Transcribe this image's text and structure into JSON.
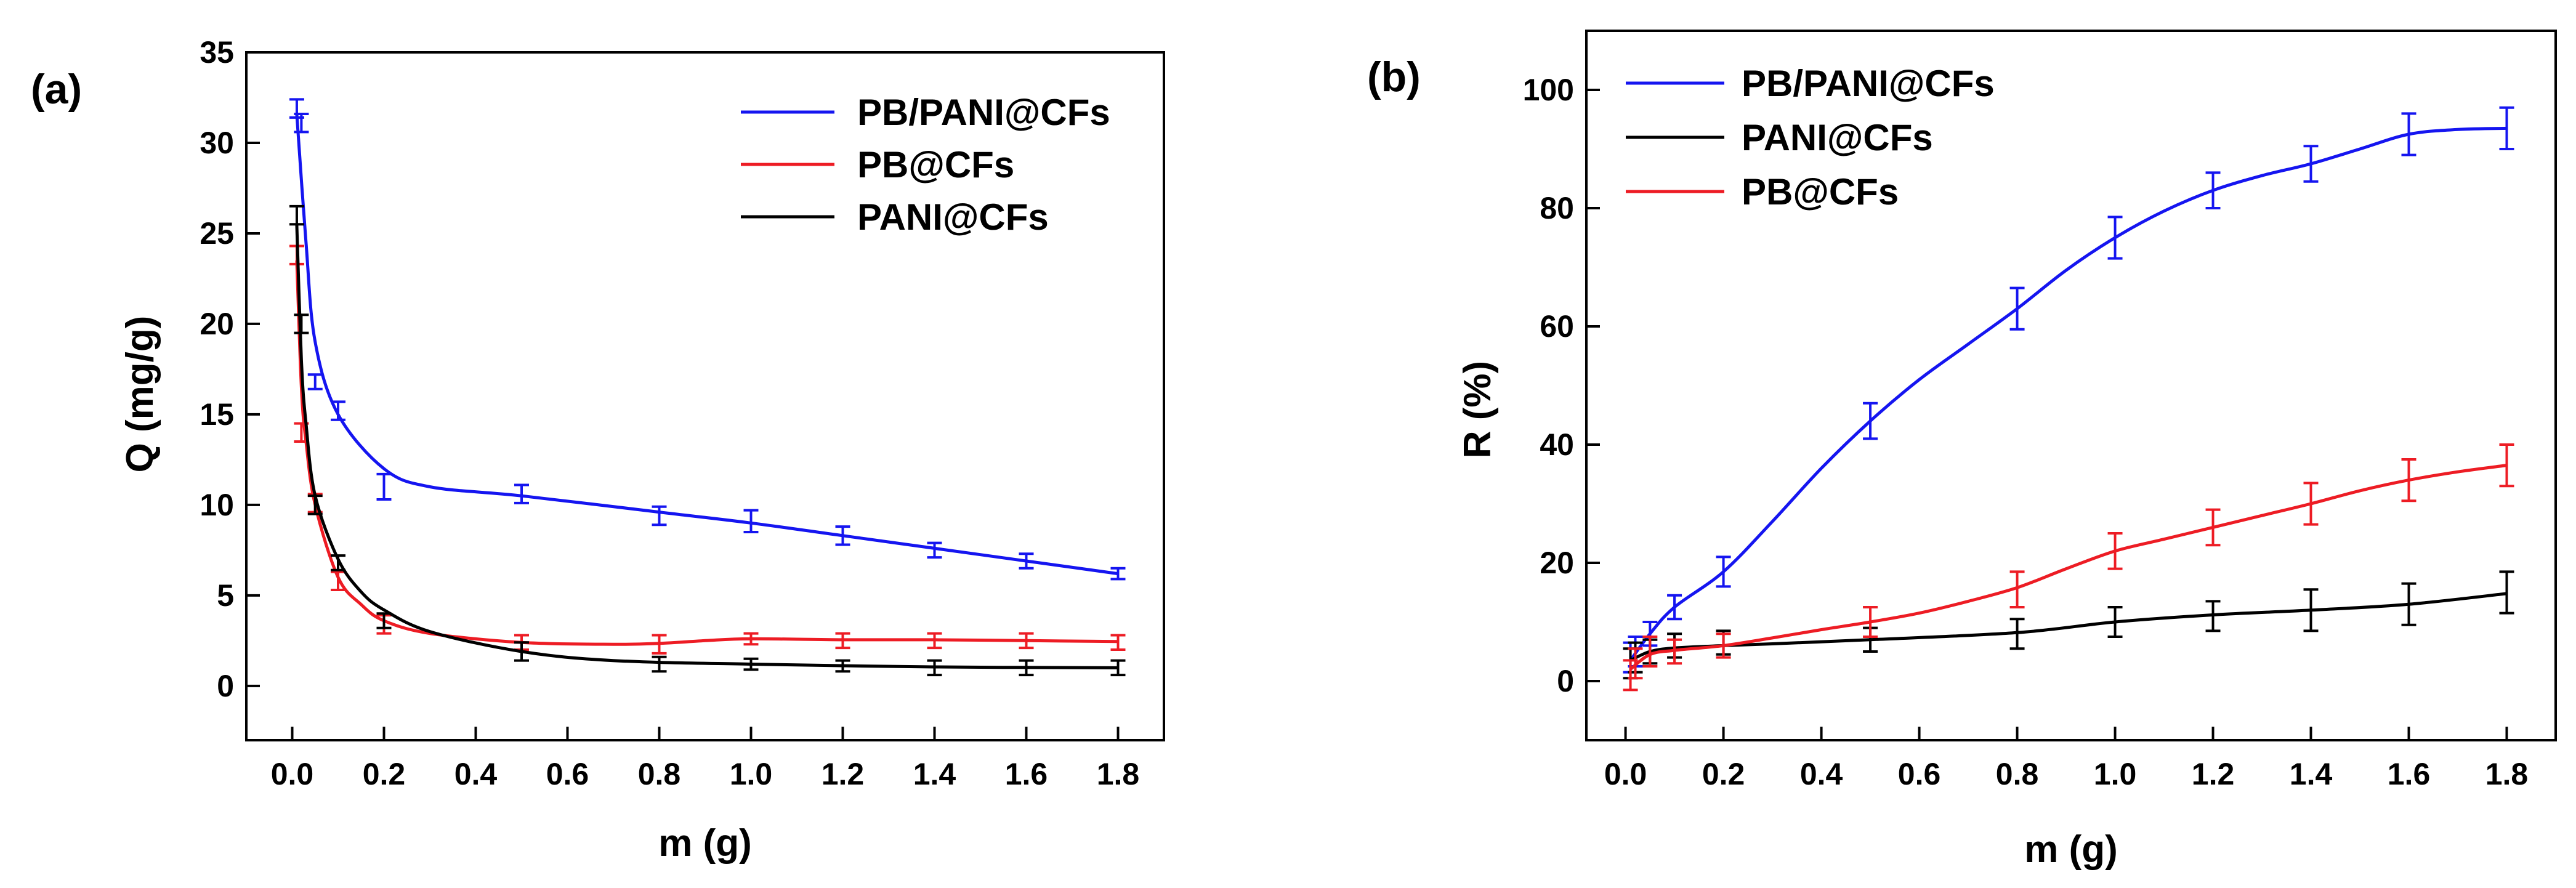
{
  "chart_data": [
    {
      "type": "line",
      "panel_label": "(a)",
      "xlabel": "m (g)",
      "ylabel": "Q (mg/g)",
      "xlim": [
        -0.1,
        1.9
      ],
      "ylim": [
        -3,
        35
      ],
      "xticks": [
        0.0,
        0.2,
        0.4,
        0.6,
        0.8,
        1.0,
        1.2,
        1.4,
        1.6,
        1.8
      ],
      "xtick_labels": [
        "0.0",
        "0.2",
        "0.4",
        "0.6",
        "0.8",
        "1.0",
        "1.2",
        "1.4",
        "1.6",
        "1.8"
      ],
      "yticks": [
        0,
        5,
        10,
        15,
        20,
        25,
        30,
        35
      ],
      "ytick_labels": [
        "0",
        "5",
        "10",
        "15",
        "20",
        "25",
        "30",
        "35"
      ],
      "legend_position": "top-right",
      "series": [
        {
          "name": "PB/PANI@CFs",
          "color": "#1515f0",
          "x": [
            0.01,
            0.02,
            0.05,
            0.1,
            0.2,
            0.5,
            0.8,
            1.0,
            1.2,
            1.4,
            1.6,
            1.8
          ],
          "y": [
            31.9,
            31.1,
            16.8,
            15.2,
            11.0,
            10.6,
            9.4,
            9.1,
            8.3,
            7.5,
            6.9,
            6.2
          ],
          "err": [
            0.5,
            0.5,
            0.4,
            0.5,
            0.7,
            0.5,
            0.5,
            0.6,
            0.5,
            0.4,
            0.4,
            0.3
          ],
          "fit_x": [
            0.01,
            0.03,
            0.05,
            0.1,
            0.2,
            0.3,
            0.5,
            0.8,
            1.0,
            1.2,
            1.4,
            1.6,
            1.8
          ],
          "fit_y": [
            31.6,
            24.5,
            19.0,
            15.0,
            12.0,
            11.0,
            10.5,
            9.6,
            9.0,
            8.3,
            7.6,
            6.9,
            6.2
          ]
        },
        {
          "name": "PB@CFs",
          "color": "#ed1c24",
          "x": [
            0.01,
            0.02,
            0.05,
            0.1,
            0.2,
            0.5,
            0.8,
            1.0,
            1.2,
            1.4,
            1.6,
            1.8
          ],
          "y": [
            23.8,
            14.0,
            10.1,
            5.8,
            3.4,
            2.4,
            2.3,
            2.6,
            2.5,
            2.5,
            2.5,
            2.4
          ],
          "err": [
            0.5,
            0.5,
            0.5,
            0.5,
            0.5,
            0.4,
            0.5,
            0.3,
            0.4,
            0.4,
            0.4,
            0.4
          ],
          "fit_x": [
            0.01,
            0.02,
            0.03,
            0.05,
            0.1,
            0.15,
            0.2,
            0.3,
            0.5,
            0.7,
            0.8,
            0.9,
            1.0,
            1.2,
            1.4,
            1.6,
            1.8
          ],
          "fit_y": [
            23.5,
            16.5,
            13.5,
            10.0,
            6.0,
            4.5,
            3.6,
            2.9,
            2.4,
            2.3,
            2.35,
            2.5,
            2.6,
            2.55,
            2.55,
            2.5,
            2.45
          ]
        },
        {
          "name": "PANI@CFs",
          "color": "#000000",
          "x": [
            0.01,
            0.02,
            0.05,
            0.1,
            0.2,
            0.5,
            0.8,
            1.0,
            1.2,
            1.4,
            1.6,
            1.8
          ],
          "y": [
            26.0,
            20.0,
            10.0,
            6.8,
            3.6,
            1.9,
            1.2,
            1.2,
            1.1,
            1.0,
            1.0,
            1.0
          ],
          "err": [
            0.5,
            0.5,
            0.5,
            0.4,
            0.4,
            0.5,
            0.4,
            0.3,
            0.3,
            0.4,
            0.4,
            0.4
          ],
          "fit_x": [
            0.01,
            0.02,
            0.03,
            0.05,
            0.1,
            0.15,
            0.2,
            0.3,
            0.5,
            0.7,
            1.0,
            1.4,
            1.8
          ],
          "fit_y": [
            25.5,
            18.0,
            14.5,
            10.5,
            7.0,
            5.2,
            4.2,
            3.0,
            1.9,
            1.4,
            1.2,
            1.05,
            1.0
          ]
        }
      ]
    },
    {
      "type": "line",
      "panel_label": "(b)",
      "xlabel": "m (g)",
      "ylabel": "R (%)",
      "xlim": [
        -0.08,
        1.9
      ],
      "ylim": [
        -10,
        110
      ],
      "xticks": [
        0.0,
        0.2,
        0.4,
        0.6,
        0.8,
        1.0,
        1.2,
        1.4,
        1.6,
        1.8
      ],
      "xtick_labels": [
        "0.0",
        "0.2",
        "0.4",
        "0.6",
        "0.8",
        "1.0",
        "1.2",
        "1.4",
        "1.6",
        "1.8"
      ],
      "yticks": [
        0,
        20,
        40,
        60,
        80,
        100
      ],
      "ytick_labels": [
        "0",
        "20",
        "40",
        "60",
        "80",
        "100"
      ],
      "legend_position": "top-left",
      "series": [
        {
          "name": "PB/PANI@CFs",
          "color": "#1515f0",
          "x": [
            0.01,
            0.02,
            0.05,
            0.1,
            0.2,
            0.5,
            0.8,
            1.0,
            1.2,
            1.4,
            1.6,
            1.8
          ],
          "y": [
            4,
            5,
            8,
            12.5,
            18.5,
            44,
            63,
            75,
            83,
            87.5,
            92.5,
            93.5
          ],
          "err": [
            2.5,
            2.5,
            2.0,
            2.0,
            2.5,
            3.0,
            3.5,
            3.5,
            3.0,
            3.0,
            3.5,
            3.5
          ],
          "fit_x": [
            0.01,
            0.05,
            0.1,
            0.2,
            0.3,
            0.4,
            0.5,
            0.6,
            0.7,
            0.8,
            0.9,
            1.0,
            1.1,
            1.2,
            1.3,
            1.4,
            1.5,
            1.6,
            1.7,
            1.8
          ],
          "fit_y": [
            3.5,
            8,
            12.5,
            18.5,
            27,
            36,
            44,
            51,
            57,
            63,
            69.5,
            75,
            79.5,
            83,
            85.5,
            87.5,
            90,
            92.5,
            93.3,
            93.5
          ]
        },
        {
          "name": "PANI@CFs",
          "color": "#000000",
          "x": [
            0.01,
            0.02,
            0.05,
            0.1,
            0.2,
            0.5,
            0.8,
            1.0,
            1.2,
            1.4,
            1.6,
            1.8
          ],
          "y": [
            3,
            4,
            5,
            6,
            6.5,
            7,
            8,
            10,
            11,
            12,
            13,
            15
          ],
          "err": [
            2.5,
            2.5,
            2.0,
            2.0,
            2.0,
            2.0,
            2.5,
            2.5,
            2.5,
            3.5,
            3.5,
            3.5
          ],
          "fit_x": [
            0.01,
            0.05,
            0.1,
            0.2,
            0.3,
            0.5,
            0.8,
            1.0,
            1.2,
            1.4,
            1.6,
            1.8
          ],
          "fit_y": [
            3.5,
            5,
            5.6,
            6.0,
            6.3,
            7.0,
            8.2,
            10.0,
            11.2,
            12.0,
            13.0,
            14.8
          ]
        },
        {
          "name": "PB@CFs",
          "color": "#ed1c24",
          "x": [
            0.01,
            0.02,
            0.05,
            0.1,
            0.2,
            0.5,
            0.8,
            1.0,
            1.2,
            1.4,
            1.6,
            1.8
          ],
          "y": [
            1,
            3,
            5,
            5,
            6,
            10,
            15.5,
            22,
            26,
            30,
            34,
            36.5
          ],
          "err": [
            2.5,
            2.5,
            2.5,
            2.0,
            2.0,
            2.5,
            3.0,
            3.0,
            3.0,
            3.5,
            3.5,
            3.5
          ],
          "fit_x": [
            0.01,
            0.05,
            0.1,
            0.2,
            0.3,
            0.4,
            0.5,
            0.6,
            0.7,
            0.8,
            0.9,
            1.0,
            1.1,
            1.2,
            1.3,
            1.4,
            1.5,
            1.6,
            1.7,
            1.8
          ],
          "fit_y": [
            2,
            4.5,
            5.2,
            6.0,
            7.3,
            8.7,
            10.0,
            11.5,
            13.5,
            15.8,
            19.0,
            22.0,
            24.0,
            26.0,
            28.0,
            30.0,
            32.2,
            34.0,
            35.4,
            36.5
          ]
        }
      ]
    }
  ]
}
